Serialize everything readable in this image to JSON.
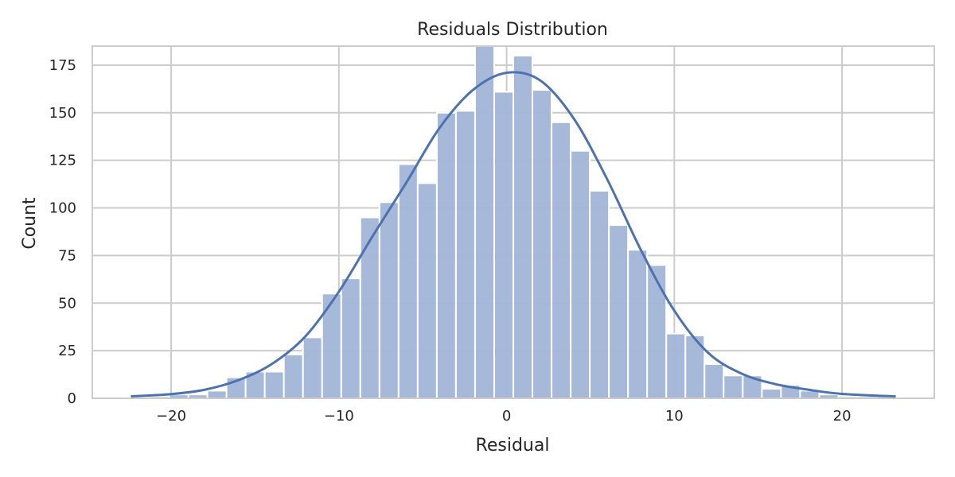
{
  "chart_data": {
    "type": "bar",
    "title": "Residuals Distribution",
    "xlabel": "Residual",
    "ylabel": "Count",
    "xlim": [
      -24.7,
      25.5
    ],
    "ylim": [
      0,
      185
    ],
    "xticks": [
      -20,
      -10,
      0,
      10,
      20
    ],
    "yticks": [
      0,
      25,
      50,
      75,
      100,
      125,
      150,
      175
    ],
    "xtick_labels": [
      "−20",
      "−10",
      "0",
      "10",
      "20"
    ],
    "ytick_labels": [
      "0",
      "25",
      "50",
      "75",
      "100",
      "125",
      "150",
      "175"
    ],
    "grid": true,
    "bin_edges": [
      -22.4,
      -21.26,
      -20.12,
      -18.98,
      -17.84,
      -16.7,
      -15.56,
      -14.42,
      -13.28,
      -12.14,
      -11.0,
      -9.86,
      -8.72,
      -7.58,
      -6.44,
      -5.3,
      -4.16,
      -3.02,
      -1.88,
      -0.74,
      0.4,
      1.54,
      2.68,
      3.82,
      4.96,
      6.1,
      7.24,
      8.38,
      9.52,
      10.66,
      11.8,
      12.94,
      14.08,
      15.22,
      16.36,
      17.5,
      18.64,
      19.78,
      20.92,
      22.06,
      23.2
    ],
    "counts": [
      0,
      1,
      2,
      2,
      4,
      11,
      14,
      14,
      23,
      32,
      55,
      63,
      95,
      103,
      123,
      113,
      150,
      151,
      185,
      161,
      180,
      162,
      145,
      130,
      109,
      91,
      78,
      70,
      34,
      33,
      18,
      12,
      12,
      5,
      7,
      4,
      2,
      1,
      1,
      1
    ],
    "kde": {
      "x": [
        -22.4,
        -20,
        -18,
        -16,
        -14,
        -12,
        -10,
        -8,
        -6,
        -4,
        -2,
        0,
        2,
        4,
        6,
        8,
        10,
        12,
        14,
        16,
        18,
        20,
        23.2
      ],
      "y": [
        1,
        2.2,
        4.5,
        9.5,
        18,
        32.5,
        56,
        85,
        113,
        142,
        162,
        171,
        167,
        147,
        115,
        78,
        46,
        24,
        13,
        7.5,
        4.5,
        2.3,
        1
      ]
    },
    "colors": {
      "bar_fill": "#a2b5d6",
      "bar_stroke": "#ffffff",
      "kde_line": "#4c72b0",
      "grid": "#cccccc",
      "frame": "#cccccc",
      "text": "#262626"
    }
  }
}
